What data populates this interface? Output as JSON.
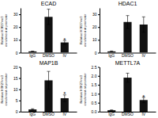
{
  "chart_data": [
    {
      "type": "bar",
      "title": "ECAD",
      "ylabel": "Relative H3K27me3\nenrichment at promoter",
      "categories": [
        "IgG",
        "DMSO",
        "IV"
      ],
      "values": [
        1.0,
        28.0,
        8.0
      ],
      "errors": [
        0.2,
        6.0,
        1.5
      ],
      "color": "#111111",
      "ylim": [
        0,
        35
      ],
      "yticks": [
        0,
        10,
        20,
        30
      ],
      "annotations": [
        {
          "text": "*",
          "x": "IV",
          "y": 10.0
        }
      ]
    },
    {
      "type": "bar",
      "title": "HDAC1",
      "ylabel": "Relative H3K27me3\nenrichment at promoter",
      "categories": [
        "IgG",
        "DMSO",
        "IV"
      ],
      "values": [
        1.0,
        24.0,
        22.0
      ],
      "errors": [
        0.3,
        5.0,
        6.0
      ],
      "color": "#111111",
      "ylim": [
        0,
        35
      ],
      "yticks": [
        0,
        10,
        20,
        30
      ]
    },
    {
      "type": "bar",
      "title": "MAP1B",
      "ylabel": "Relative H3K27me3\nenrichment at promoter",
      "categories": [
        "IgG",
        "DMSO",
        "IV"
      ],
      "values": [
        1.0,
        14.0,
        6.0
      ],
      "errors": [
        0.3,
        4.0,
        1.5
      ],
      "color": "#111111",
      "ylim": [
        0,
        20
      ],
      "yticks": [
        0,
        5,
        10,
        15,
        20
      ],
      "annotations": [
        {
          "text": "*",
          "x": "IV",
          "y": 8.0
        }
      ]
    },
    {
      "type": "bar",
      "title": "METTL7A",
      "ylabel": "Relative H3K27me3\nenrichment at promoter",
      "categories": [
        "IgG",
        "DMSO",
        "IV"
      ],
      "values": [
        0.08,
        1.9,
        0.65
      ],
      "errors": [
        0.02,
        0.25,
        0.15
      ],
      "color": "#111111",
      "ylim": [
        0,
        2.5
      ],
      "yticks": [
        {
          "value": 0,
          "label": "0.0"
        },
        0.5,
        {
          "value": 1.0,
          "label": "1.0"
        },
        1.5,
        {
          "value": 2.0,
          "label": "2.0"
        },
        2.5
      ],
      "annotations": [
        {
          "text": "*",
          "x": "IV",
          "y": 0.82
        }
      ]
    }
  ]
}
